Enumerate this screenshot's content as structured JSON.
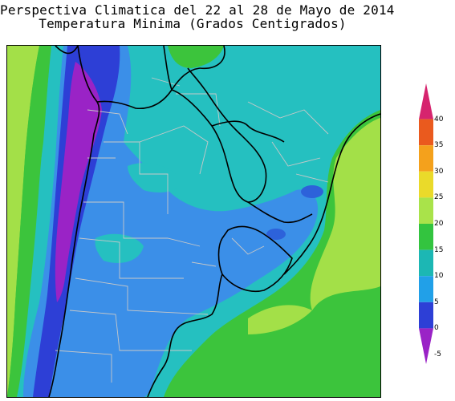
{
  "title": {
    "line1": "Perspectiva Climatica del 22 al 28 de Mayo de 2014",
    "line2": "Temperatura Minima (Grados Centigrados)"
  },
  "colorbar": {
    "ticks": [
      "40",
      "35",
      "30",
      "25",
      "20",
      "15",
      "10",
      "5",
      "0",
      "-5"
    ],
    "bands": [
      {
        "from": 35,
        "to": 40,
        "color": "#d6246e"
      },
      {
        "from": 30,
        "to": 35,
        "color": "#ea5a1e"
      },
      {
        "from": 25,
        "to": 30,
        "color": "#f4a11c"
      },
      {
        "from": 20,
        "to": 25,
        "color": "#eada2a"
      },
      {
        "from": 15,
        "to": 20,
        "color": "#a9e34a"
      },
      {
        "from": 10,
        "to": 15,
        "color": "#33c43f"
      },
      {
        "from": 5,
        "to": 10,
        "color": "#1cb7b4"
      },
      {
        "from": 0,
        "to": 5,
        "color": "#21a0e8"
      },
      {
        "from": -5,
        "to": 0,
        "color": "#2d3fd6"
      },
      {
        "from": -10,
        "to": -5,
        "color": "#9a23c6"
      }
    ]
  },
  "map": {
    "region": "Argentina, Uruguay, Paraguay, sur de Brasil y Chile",
    "colors": {
      "purple": "#9a23c6",
      "deep_blue": "#2d3fd6",
      "blue": "#3b8fe8",
      "light_blue": "#41aaf0",
      "teal": "#25c0c0",
      "green": "#3cc43c",
      "light_green": "#a3e048",
      "border": "#000000",
      "province_line": "#c8c8c8"
    }
  }
}
